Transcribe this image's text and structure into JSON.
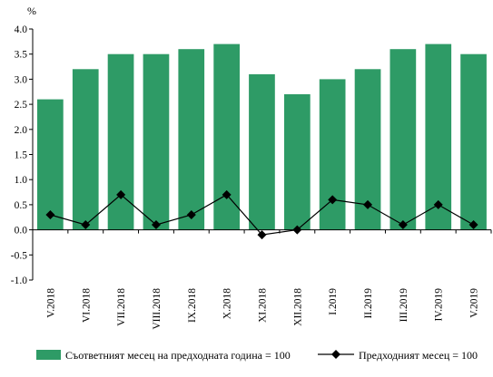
{
  "chart_data": {
    "type": "bar",
    "unit_label": "%",
    "categories": [
      "V.2018",
      "VI.2018",
      "VII.2018",
      "VIII.2018",
      "IX.2018",
      "X.2018",
      "XI.2018",
      "XII.2018",
      "I.2019",
      "II.2019",
      "III.2019",
      "IV.2019",
      "V.2019"
    ],
    "series": [
      {
        "name": "Съответният месец на предходната година = 100",
        "kind": "bar",
        "color": "#2e9b66",
        "values": [
          2.6,
          3.2,
          3.5,
          3.5,
          3.6,
          3.7,
          3.1,
          2.7,
          3.0,
          3.2,
          3.6,
          3.7,
          3.5
        ]
      },
      {
        "name": "Предходният месец = 100",
        "kind": "line",
        "color": "#000000",
        "marker": "diamond",
        "values": [
          0.3,
          0.1,
          0.7,
          0.1,
          0.3,
          0.7,
          -0.1,
          0.0,
          0.6,
          0.5,
          0.1,
          0.5,
          0.1
        ]
      }
    ],
    "ylim": [
      -1.0,
      4.0
    ],
    "yticks": [
      "4.0",
      "3.5",
      "3.0",
      "2.5",
      "2.0",
      "1.5",
      "1.0",
      "0.5",
      "0.0",
      "-0.5",
      "-1.0"
    ],
    "grid": false,
    "legend_position": "bottom"
  }
}
